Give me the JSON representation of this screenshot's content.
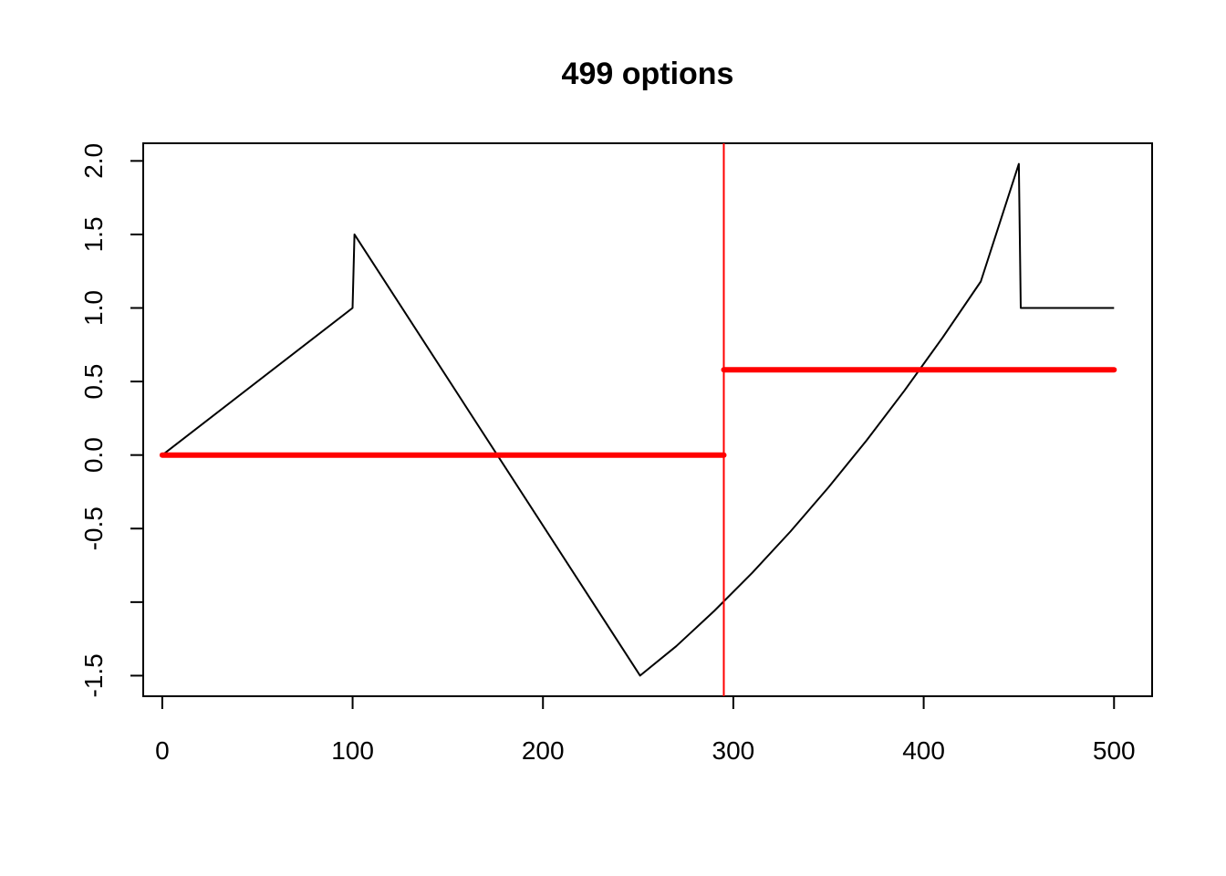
{
  "chart_data": {
    "type": "line",
    "title": "499 options",
    "xlabel": "",
    "ylabel": "",
    "xlim": [
      -10,
      520
    ],
    "ylim": [
      -1.64,
      2.12
    ],
    "x_ticks": [
      0,
      100,
      200,
      300,
      400,
      500
    ],
    "x_tick_labels": [
      "0",
      "100",
      "200",
      "300",
      "400",
      "500"
    ],
    "y_ticks": [
      -1.5,
      -1.0,
      -0.5,
      0.0,
      0.5,
      1.0,
      1.5,
      2.0
    ],
    "y_tick_labels": [
      "-1.5",
      "",
      "-0.5",
      "0.0",
      "0.5",
      "1.0",
      "1.5",
      "2.0"
    ],
    "grid": false,
    "legend": "none",
    "series": [
      {
        "color": "#000000",
        "style": "thin-line",
        "points": [
          [
            0,
            0.0
          ],
          [
            100,
            1.0
          ],
          [
            101,
            1.5
          ],
          [
            251,
            -1.5
          ],
          [
            270,
            -1.3
          ],
          [
            290,
            -1.06
          ],
          [
            310,
            -0.8
          ],
          [
            330,
            -0.52
          ],
          [
            350,
            -0.22
          ],
          [
            370,
            0.1
          ],
          [
            390,
            0.44
          ],
          [
            410,
            0.8
          ],
          [
            430,
            1.18
          ],
          [
            450,
            1.98
          ],
          [
            451,
            1.0
          ],
          [
            500,
            1.0
          ]
        ]
      },
      {
        "color": "#ff0000",
        "style": "thick-line",
        "points": [
          [
            0,
            0.0
          ],
          [
            295,
            0.0
          ]
        ]
      },
      {
        "color": "#ff0000",
        "style": "thick-line",
        "points": [
          [
            295,
            0.58
          ],
          [
            500,
            0.58
          ]
        ]
      }
    ],
    "vline": {
      "x": 295,
      "color": "#ff0000"
    }
  }
}
